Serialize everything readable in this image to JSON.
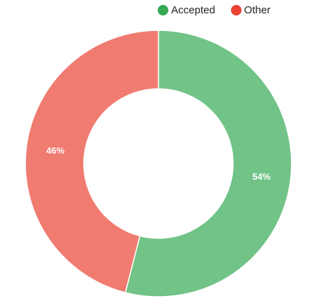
{
  "chart_data": {
    "type": "pie",
    "variant": "donut",
    "legend_position": "top",
    "series": [
      {
        "name": "Accepted",
        "value": 54,
        "label": "54%",
        "legend_color": "#34a853",
        "slice_color": "#71c387"
      },
      {
        "name": "Other",
        "value": 46,
        "label": "46%",
        "legend_color": "#ea4335",
        "slice_color": "#f07b70"
      }
    ]
  }
}
